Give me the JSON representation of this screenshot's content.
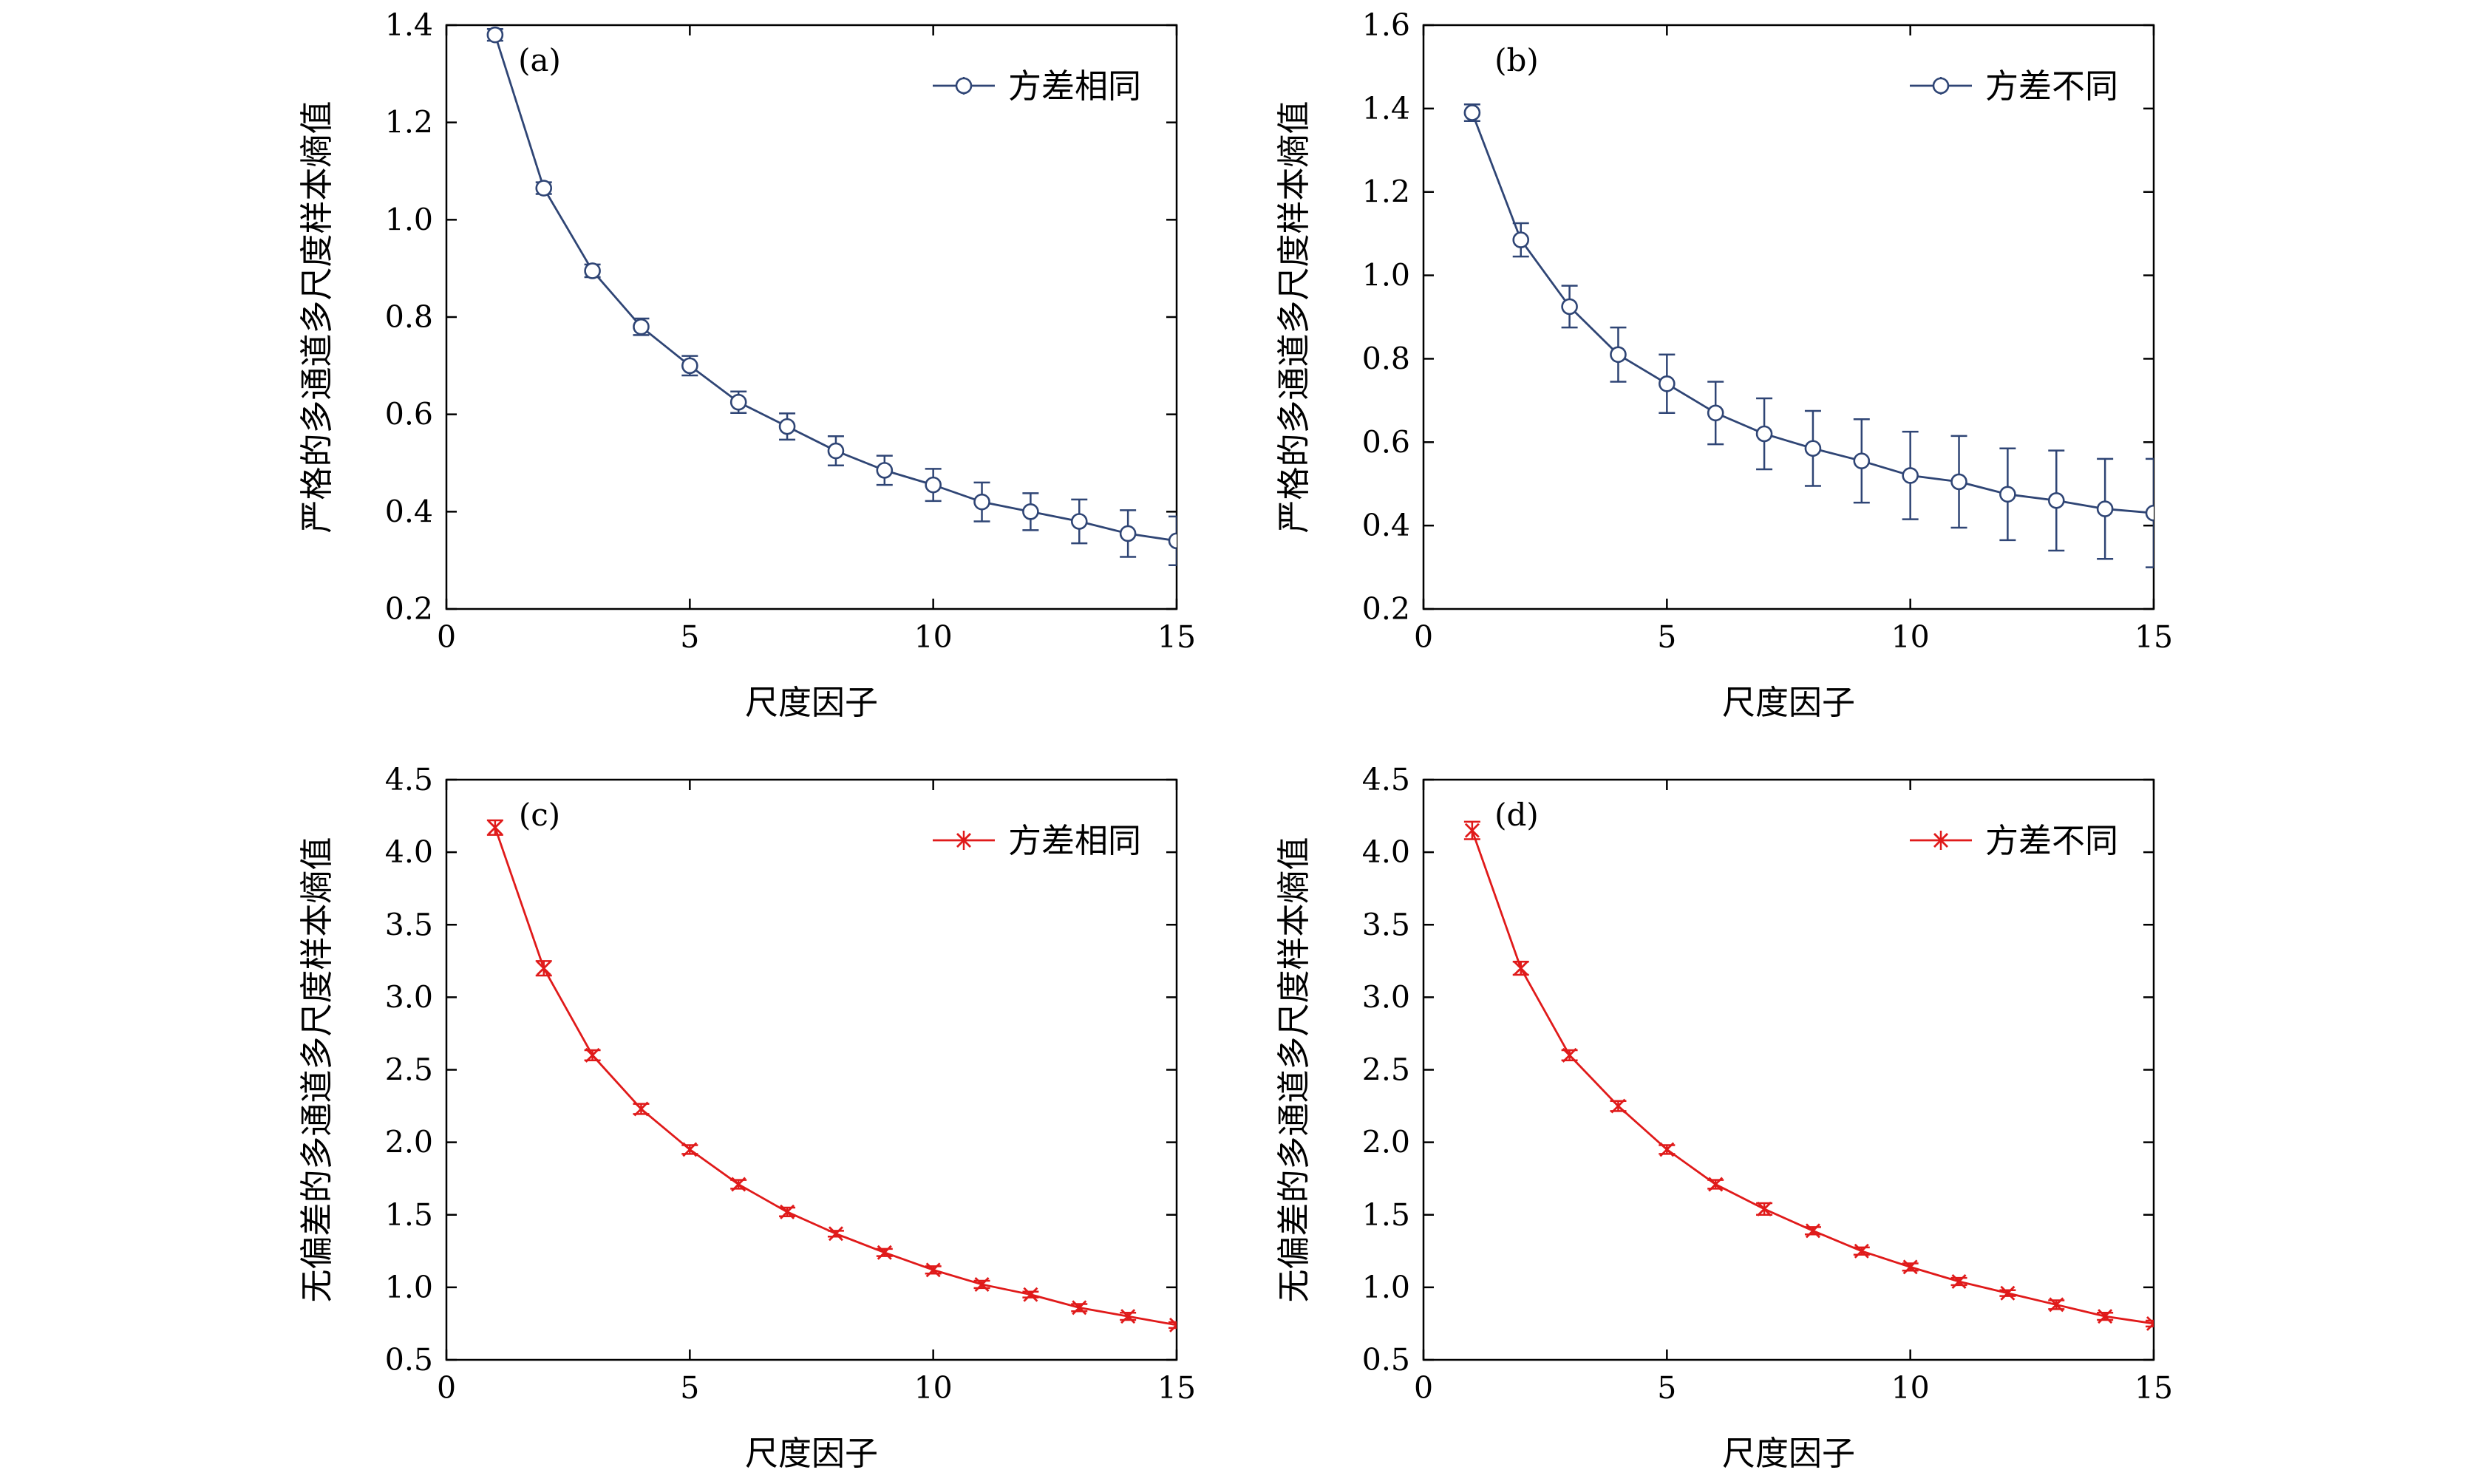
{
  "chart_data": [
    {
      "type": "line",
      "panel_label": "(a)",
      "xlabel": "尺度因子",
      "ylabel": "严格的多通道多尺度样本熵值",
      "xlim": [
        0,
        15
      ],
      "ylim": [
        0.2,
        1.4
      ],
      "xticks": [
        0,
        5,
        10,
        15
      ],
      "yticks": [
        0.2,
        0.4,
        0.6,
        0.8,
        1.0,
        1.2,
        1.4
      ],
      "ytick_labels": [
        "0.2",
        "0.4",
        "0.6",
        "0.8",
        "1.0",
        "1.2",
        "1.4"
      ],
      "legend_position": "top-right",
      "color": "#2f4575",
      "marker": "circle",
      "series": [
        {
          "name": "方差相同",
          "x": [
            1,
            2,
            3,
            4,
            5,
            6,
            7,
            8,
            9,
            10,
            11,
            12,
            13,
            14,
            15
          ],
          "values": [
            1.38,
            1.065,
            0.895,
            0.78,
            0.7,
            0.625,
            0.575,
            0.525,
            0.485,
            0.455,
            0.42,
            0.4,
            0.38,
            0.355,
            0.34
          ],
          "errors": [
            0.012,
            0.012,
            0.013,
            0.017,
            0.02,
            0.022,
            0.027,
            0.03,
            0.03,
            0.033,
            0.04,
            0.038,
            0.045,
            0.048,
            0.05
          ]
        }
      ]
    },
    {
      "type": "line",
      "panel_label": "(b)",
      "xlabel": "尺度因子",
      "ylabel": "严格的多通道多尺度样本熵值",
      "xlim": [
        0,
        15
      ],
      "ylim": [
        0.2,
        1.6
      ],
      "xticks": [
        0,
        5,
        10,
        15
      ],
      "yticks": [
        0.2,
        0.4,
        0.6,
        0.8,
        1.0,
        1.2,
        1.4,
        1.6
      ],
      "ytick_labels": [
        "0.2",
        "0.4",
        "0.6",
        "0.8",
        "1.0",
        "1.2",
        "1.4",
        "1.6"
      ],
      "legend_position": "top-right",
      "color": "#2f4575",
      "marker": "circle",
      "series": [
        {
          "name": "方差不同",
          "x": [
            1,
            2,
            3,
            4,
            5,
            6,
            7,
            8,
            9,
            10,
            11,
            12,
            13,
            14,
            15
          ],
          "values": [
            1.39,
            1.085,
            0.925,
            0.81,
            0.74,
            0.67,
            0.62,
            0.585,
            0.555,
            0.52,
            0.505,
            0.475,
            0.46,
            0.44,
            0.43
          ],
          "errors": [
            0.02,
            0.04,
            0.05,
            0.065,
            0.07,
            0.075,
            0.085,
            0.09,
            0.1,
            0.105,
            0.11,
            0.11,
            0.12,
            0.12,
            0.13
          ]
        }
      ]
    },
    {
      "type": "line",
      "panel_label": "(c)",
      "xlabel": "尺度因子",
      "ylabel": "无偏差的多通道多尺度样本熵值",
      "xlim": [
        0,
        15
      ],
      "ylim": [
        0.5,
        4.5
      ],
      "xticks": [
        0,
        5,
        10,
        15
      ],
      "yticks": [
        0.5,
        1.0,
        1.5,
        2.0,
        2.5,
        3.0,
        3.5,
        4.0,
        4.5
      ],
      "ytick_labels": [
        "0.5",
        "1.0",
        "1.5",
        "2.0",
        "2.5",
        "3.0",
        "3.5",
        "4.0",
        "4.5"
      ],
      "legend_position": "top-right",
      "color": "#e01a1a",
      "marker": "x",
      "series": [
        {
          "name": "方差相同",
          "x": [
            1,
            2,
            3,
            4,
            5,
            6,
            7,
            8,
            9,
            10,
            11,
            12,
            13,
            14,
            15
          ],
          "values": [
            4.17,
            3.2,
            2.6,
            2.23,
            1.95,
            1.71,
            1.52,
            1.37,
            1.24,
            1.12,
            1.02,
            0.95,
            0.86,
            0.8,
            0.74
          ],
          "errors": [
            0.05,
            0.05,
            0.035,
            0.035,
            0.03,
            0.03,
            0.03,
            0.02,
            0.025,
            0.025,
            0.025,
            0.02,
            0.025,
            0.025,
            0.02
          ]
        }
      ]
    },
    {
      "type": "line",
      "panel_label": "(d)",
      "xlabel": "尺度因子",
      "ylabel": "无偏差的多通道多尺度样本熵值",
      "xlim": [
        0,
        15
      ],
      "ylim": [
        0.5,
        4.5
      ],
      "xticks": [
        0,
        5,
        10,
        15
      ],
      "yticks": [
        0.5,
        1.0,
        1.5,
        2.0,
        2.5,
        3.0,
        3.5,
        4.0,
        4.5
      ],
      "ytick_labels": [
        "0.5",
        "1.0",
        "1.5",
        "2.0",
        "2.5",
        "3.0",
        "3.5",
        "4.0",
        "4.5"
      ],
      "legend_position": "top-right",
      "color": "#e01a1a",
      "marker": "x",
      "series": [
        {
          "name": "方差不同",
          "x": [
            1,
            2,
            3,
            4,
            5,
            6,
            7,
            8,
            9,
            10,
            11,
            12,
            13,
            14,
            15
          ],
          "values": [
            4.15,
            3.2,
            2.6,
            2.25,
            1.95,
            1.71,
            1.54,
            1.39,
            1.25,
            1.14,
            1.04,
            0.96,
            0.88,
            0.8,
            0.75
          ],
          "errors": [
            0.06,
            0.045,
            0.035,
            0.035,
            0.03,
            0.03,
            0.04,
            0.025,
            0.025,
            0.025,
            0.025,
            0.02,
            0.03,
            0.025,
            0.02
          ]
        }
      ]
    }
  ]
}
